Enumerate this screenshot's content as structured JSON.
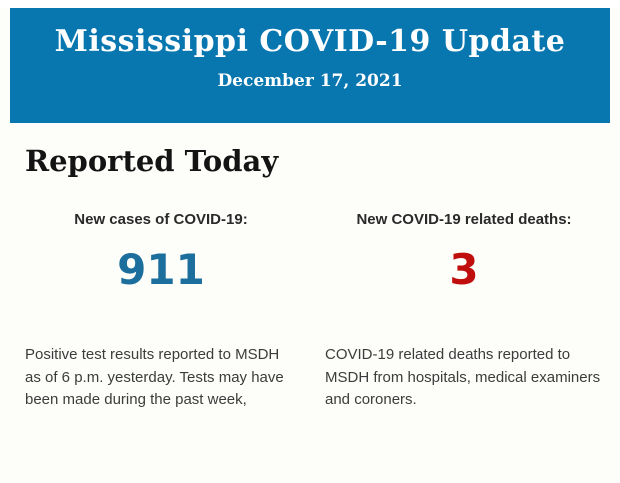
{
  "colors": {
    "page_bg": "#fdfdfa",
    "banner_bg": "#0877b0",
    "banner_text": "#ffffff",
    "heading_text": "#141414",
    "label_text": "#2a2a2a",
    "body_text": "#3c3c3c"
  },
  "banner": {
    "title": "Mississippi COVID-19 Update",
    "date": "December 17, 2021"
  },
  "report": {
    "heading": "Reported Today",
    "stats": [
      {
        "label": "New cases of COVID-19:",
        "value": "911",
        "value_color": "#1c6e9c",
        "description": "Positive test results reported to MSDH as of 6 p.m. yesterday. Tests may have been made during the past week,"
      },
      {
        "label": "New COVID-19 related deaths:",
        "value": "3",
        "value_color": "#c00d0d",
        "description": "COVID-19 related deaths reported to MSDH from hospitals, medical examiners and coroners."
      }
    ]
  }
}
